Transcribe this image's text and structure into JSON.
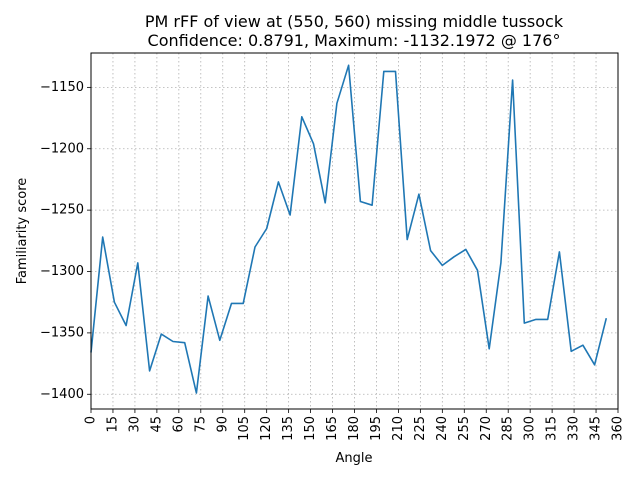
{
  "chart_data": {
    "type": "line",
    "title_line1": "PM rFF of view at (550, 560) missing middle tussock",
    "title_line2": "Confidence: 0.8791, Maximum: -1132.1972 @ 176°",
    "xlabel": "Angle",
    "ylabel": "Familiarity score",
    "xlim": [
      0,
      360
    ],
    "ylim": [
      -1412,
      -1122
    ],
    "xticks": [
      0,
      15,
      30,
      45,
      60,
      75,
      90,
      105,
      120,
      135,
      150,
      165,
      180,
      195,
      210,
      225,
      240,
      255,
      270,
      285,
      300,
      315,
      330,
      345,
      360
    ],
    "yticks": [
      -1400,
      -1350,
      -1300,
      -1250,
      -1200,
      -1150
    ],
    "grid": true,
    "series": [
      {
        "color": "#1f77b4",
        "x": [
          0,
          8,
          16,
          24,
          32,
          40,
          48,
          56,
          64,
          72,
          80,
          88,
          96,
          104,
          112,
          120,
          128,
          136,
          144,
          152,
          160,
          168,
          176,
          184,
          192,
          200,
          208,
          216,
          224,
          232,
          240,
          248,
          256,
          264,
          272,
          280,
          288,
          296,
          304,
          312,
          320,
          328,
          336,
          344,
          352
        ],
        "y": [
          -1366,
          -1272,
          -1325,
          -1344,
          -1293,
          -1381,
          -1351,
          -1357,
          -1358,
          -1399,
          -1320,
          -1356,
          -1326,
          -1326,
          -1280,
          -1265,
          -1227,
          -1254,
          -1174,
          -1196,
          -1244,
          -1163,
          -1132,
          -1243,
          -1246,
          -1137,
          -1137,
          -1274,
          -1237,
          -1283,
          -1295,
          -1288,
          -1282,
          -1299,
          -1363,
          -1293,
          -1144,
          -1342,
          -1339,
          -1339,
          -1284,
          -1365,
          -1360,
          -1376,
          -1338
        ]
      }
    ]
  }
}
